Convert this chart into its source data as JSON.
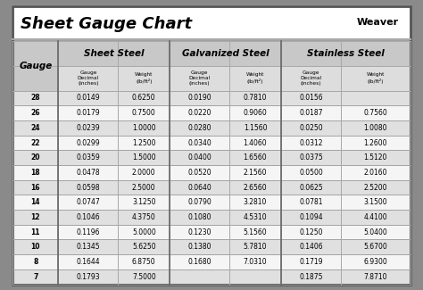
{
  "title": "Sheet Gauge Chart",
  "background_outer": "#8a8a8a",
  "background_inner": "#f0f0f0",
  "row_bg_odd": "#e0e0e0",
  "row_bg_even": "#f5f5f5",
  "gauges": [
    28,
    26,
    24,
    22,
    20,
    18,
    16,
    14,
    12,
    11,
    10,
    8,
    7
  ],
  "sheet_steel": {
    "decimal": [
      "0.0149",
      "0.0179",
      "0.0239",
      "0.0299",
      "0.0359",
      "0.0478",
      "0.0598",
      "0.0747",
      "0.1046",
      "0.1196",
      "0.1345",
      "0.1644",
      "0.1793"
    ],
    "weight": [
      "0.6250",
      "0.7500",
      "1.0000",
      "1.2500",
      "1.5000",
      "2.0000",
      "2.5000",
      "3.1250",
      "4.3750",
      "5.0000",
      "5.6250",
      "6.8750",
      "7.5000"
    ]
  },
  "galvanized_steel": {
    "decimal": [
      "0.0190",
      "0.0220",
      "0.0280",
      "0.0340",
      "0.0400",
      "0.0520",
      "0.0640",
      "0.0790",
      "0.1080",
      "0.1230",
      "0.1380",
      "0.1680",
      ""
    ],
    "weight": [
      "0.7810",
      "0.9060",
      "1.1560",
      "1.4060",
      "1.6560",
      "2.1560",
      "2.6560",
      "3.2810",
      "4.5310",
      "5.1560",
      "5.7810",
      "7.0310",
      ""
    ]
  },
  "stainless_steel": {
    "decimal": [
      "0.0156",
      "0.0187",
      "0.0250",
      "0.0312",
      "0.0375",
      "0.0500",
      "0.0625",
      "0.0781",
      "0.1094",
      "0.1250",
      "0.1406",
      "0.1719",
      "0.1875"
    ],
    "weight": [
      "",
      "0.7560",
      "1.0080",
      "1.2600",
      "1.5120",
      "2.0160",
      "2.5200",
      "3.1500",
      "4.4100",
      "5.0400",
      "5.6700",
      "6.9300",
      "7.8710"
    ]
  }
}
